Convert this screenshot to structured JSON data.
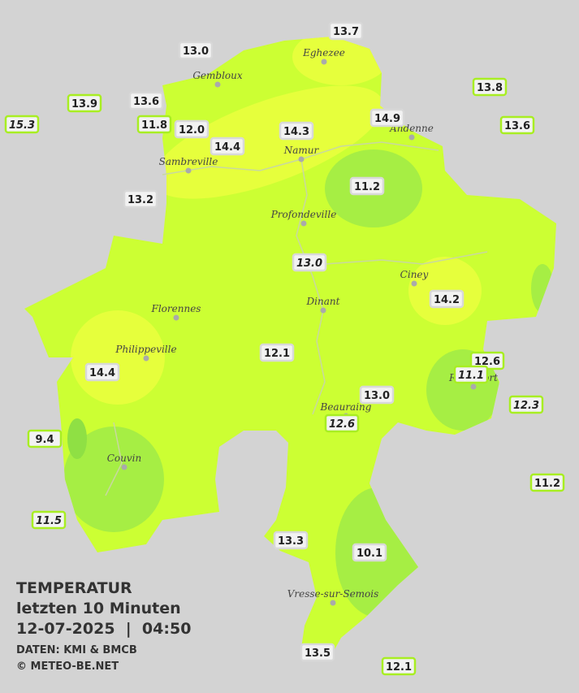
{
  "legend": {
    "title": "TEMPERATUR",
    "period": "letzten 10 Minuten",
    "timestamp": "12-07-2025  |  04:50",
    "source": "DATEN: KMI & BMCB",
    "copyright": "© METEO-BE.NET"
  },
  "cities": [
    "Eghezee",
    "Gembloux",
    "Andenne",
    "Namur",
    "Sambreville",
    "Profondeville",
    "Ciney",
    "Dinant",
    "Florennes",
    "Philippeville",
    "Rochefort",
    "Beauraing",
    "Couvin",
    "Vresse-sur-Semois"
  ],
  "stations": [
    {
      "label": "13.7",
      "italic": false
    },
    {
      "label": "13.0",
      "italic": false
    },
    {
      "label": "13.8",
      "italic": false
    },
    {
      "label": "13.9",
      "italic": false
    },
    {
      "label": "13.6",
      "italic": false
    },
    {
      "label": "15.3",
      "italic": true
    },
    {
      "label": "11.8",
      "italic": false
    },
    {
      "label": "12.0",
      "italic": false
    },
    {
      "label": "14.9",
      "italic": false
    },
    {
      "label": "13.6",
      "italic": false
    },
    {
      "label": "14.3",
      "italic": false
    },
    {
      "label": "14.4",
      "italic": false
    },
    {
      "label": "13.2",
      "italic": false
    },
    {
      "label": "11.2",
      "italic": false
    },
    {
      "label": "13.0",
      "italic": true
    },
    {
      "label": "14.2",
      "italic": false
    },
    {
      "label": "12.1",
      "italic": false
    },
    {
      "label": "12.6",
      "italic": false
    },
    {
      "label": "11.1",
      "italic": true
    },
    {
      "label": "14.4",
      "italic": false
    },
    {
      "label": "13.0",
      "italic": false
    },
    {
      "label": "12.3",
      "italic": true
    },
    {
      "label": "12.6",
      "italic": true
    },
    {
      "label": "9.4",
      "italic": false
    },
    {
      "label": "11.2",
      "italic": false
    },
    {
      "label": "11.5",
      "italic": true
    },
    {
      "label": "13.3",
      "italic": false
    },
    {
      "label": "10.1",
      "italic": false
    },
    {
      "label": "13.5",
      "italic": false
    },
    {
      "label": "12.1",
      "italic": false
    }
  ]
}
